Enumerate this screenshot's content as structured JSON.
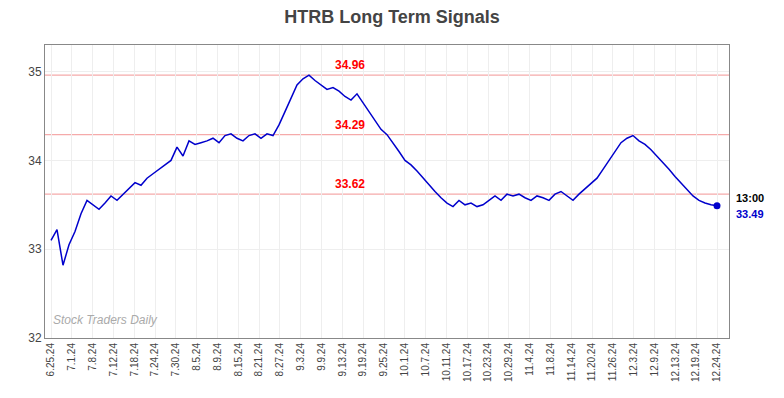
{
  "chart_data": {
    "type": "line",
    "title": "HTRB Long Term Signals",
    "color": "#0000cc",
    "x": [
      0,
      1,
      2,
      3,
      4,
      5,
      6,
      7,
      8,
      9,
      10,
      11,
      12,
      13,
      14,
      15,
      16,
      17,
      18,
      19,
      20,
      21,
      22,
      23,
      24,
      25,
      26,
      27,
      28,
      29,
      30,
      31,
      32,
      33,
      34,
      35,
      36,
      37,
      38,
      39,
      40,
      41,
      42,
      43,
      44,
      45,
      46,
      47,
      48,
      49,
      50,
      51,
      52,
      53,
      54,
      55,
      56,
      57,
      58,
      59,
      60,
      61,
      62,
      63,
      64,
      65,
      66,
      67,
      68,
      69,
      70,
      71,
      72,
      73,
      74,
      75,
      76,
      77,
      78,
      79,
      80,
      81,
      82,
      83,
      84,
      85,
      86,
      87,
      88,
      89,
      90,
      91,
      92,
      93,
      94,
      95,
      96,
      97,
      98,
      99,
      100,
      101,
      102,
      103,
      104,
      105,
      106,
      107,
      108,
      109,
      110,
      111
    ],
    "values": [
      33.1,
      33.22,
      32.82,
      33.05,
      33.2,
      33.4,
      33.55,
      33.5,
      33.45,
      33.52,
      33.6,
      33.55,
      33.62,
      33.68,
      33.75,
      33.72,
      33.8,
      33.85,
      33.9,
      33.95,
      34.0,
      34.15,
      34.05,
      34.22,
      34.18,
      34.2,
      34.22,
      34.25,
      34.2,
      34.28,
      34.3,
      34.25,
      34.22,
      34.28,
      34.3,
      34.25,
      34.3,
      34.28,
      34.4,
      34.55,
      34.7,
      34.85,
      34.92,
      34.96,
      34.9,
      34.85,
      34.8,
      34.82,
      34.78,
      34.72,
      34.68,
      34.75,
      34.65,
      34.55,
      34.45,
      34.35,
      34.29,
      34.2,
      34.1,
      34.0,
      33.95,
      33.88,
      33.8,
      33.72,
      33.65,
      33.58,
      33.52,
      33.48,
      33.55,
      33.5,
      33.52,
      33.48,
      33.5,
      33.55,
      33.6,
      33.55,
      33.62,
      33.6,
      33.62,
      33.58,
      33.55,
      33.6,
      33.58,
      33.55,
      33.62,
      33.65,
      33.6,
      33.55,
      33.62,
      33.68,
      33.75,
      33.8,
      33.9,
      34.0,
      34.1,
      34.2,
      34.25,
      34.28,
      34.22,
      34.18,
      34.12,
      34.05,
      33.98,
      33.9,
      33.82,
      33.75,
      33.68,
      33.6,
      33.55,
      33.52,
      33.5,
      33.49
    ],
    "xlim": [
      -1,
      113
    ],
    "xticks": [
      {
        "value": 0,
        "label": "6.25.24"
      },
      {
        "value": 3.46875,
        "label": "7.1.24"
      },
      {
        "value": 6.9375,
        "label": "7.8.24"
      },
      {
        "value": 10.40625,
        "label": "7.12.24"
      },
      {
        "value": 13.875,
        "label": "7.18.24"
      },
      {
        "value": 17.34375,
        "label": "7.24.24"
      },
      {
        "value": 20.8125,
        "label": "7.30.24"
      },
      {
        "value": 24.28125,
        "label": "8.5.24"
      },
      {
        "value": 27.75,
        "label": "8.9.24"
      },
      {
        "value": 31.21875,
        "label": "8.15.24"
      },
      {
        "value": 34.6875,
        "label": "8.21.24"
      },
      {
        "value": 38.15625,
        "label": "8.27.24"
      },
      {
        "value": 41.625,
        "label": "9.3.24"
      },
      {
        "value": 45.09375,
        "label": "9.9.24"
      },
      {
        "value": 48.5625,
        "label": "9.13.24"
      },
      {
        "value": 52.03125,
        "label": "9.19.24"
      },
      {
        "value": 55.5,
        "label": "9.25.24"
      },
      {
        "value": 58.96875,
        "label": "10.1.24"
      },
      {
        "value": 62.4375,
        "label": "10.7.24"
      },
      {
        "value": 65.90625,
        "label": "10.11.24"
      },
      {
        "value": 69.375,
        "label": "10.17.24"
      },
      {
        "value": 72.84375,
        "label": "10.23.24"
      },
      {
        "value": 76.3125,
        "label": "10.29.24"
      },
      {
        "value": 79.78125,
        "label": "11.4.24"
      },
      {
        "value": 83.25,
        "label": "11.8.24"
      },
      {
        "value": 86.71875,
        "label": "11.14.24"
      },
      {
        "value": 90.1875,
        "label": "11.20.24"
      },
      {
        "value": 93.65625,
        "label": "11.26.24"
      },
      {
        "value": 97.125,
        "label": "12.3.24"
      },
      {
        "value": 100.59375,
        "label": "12.9.24"
      },
      {
        "value": 104.0625,
        "label": "12.13.24"
      },
      {
        "value": 107.53125,
        "label": "12.19.24"
      },
      {
        "value": 111,
        "label": "12.24.24"
      }
    ],
    "ylim": [
      32,
      35.3
    ],
    "yticks": [
      32,
      33,
      34,
      35
    ],
    "grid": true,
    "reference_lines": [
      {
        "y": 34.96,
        "color": "#f5aaaa",
        "label": "34.96",
        "label_x": 47,
        "label_color": "red"
      },
      {
        "y": 34.29,
        "color": "#f5aaaa",
        "label": "34.29",
        "label_x": 47,
        "label_color": "red"
      },
      {
        "y": 33.62,
        "color": "#f5aaaa",
        "label": "33.62",
        "label_x": 47,
        "label_color": "red"
      }
    ],
    "end_labels": [
      {
        "text": "13:00",
        "y": 33.49,
        "color": "black"
      },
      {
        "text": "33.49",
        "y": 33.49,
        "color": "#0000cc"
      }
    ],
    "watermark": {
      "text": "Stock Traders Daily",
      "x": 0.02,
      "y": 32.1,
      "color": "#aaaaaa"
    }
  }
}
